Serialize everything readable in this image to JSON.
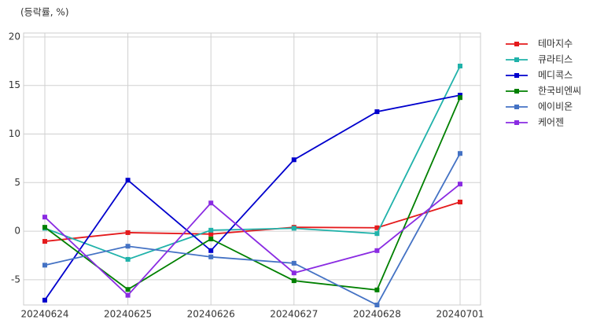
{
  "chart_data": {
    "type": "line",
    "ylabel": "(등락률, %)",
    "categories": [
      "20240624",
      "20240625",
      "20240626",
      "20240627",
      "20240628",
      "20240701"
    ],
    "series": [
      {
        "name": "테마지수",
        "color": "#e41a1c",
        "values": [
          -1.05,
          -0.15,
          -0.3,
          0.4,
          0.35,
          3.0
        ]
      },
      {
        "name": "큐라티스",
        "color": "#20b2aa",
        "values": [
          0.3,
          -2.9,
          0.1,
          0.3,
          -0.25,
          17.0
        ]
      },
      {
        "name": "메디콕스",
        "color": "#0000cd",
        "values": [
          -7.1,
          5.25,
          -2.0,
          7.35,
          12.3,
          14.0
        ]
      },
      {
        "name": "한국비엔씨",
        "color": "#008000",
        "values": [
          0.4,
          -6.0,
          -0.8,
          -5.1,
          -6.05,
          13.75
        ]
      },
      {
        "name": "에이비온",
        "color": "#4472c4",
        "values": [
          -3.5,
          -1.55,
          -2.65,
          -3.3,
          -7.6,
          8.0
        ]
      },
      {
        "name": "케어젠",
        "color": "#8a2be2",
        "values": [
          1.45,
          -6.6,
          2.9,
          -4.3,
          -2.0,
          4.85
        ]
      }
    ],
    "ylim": [
      -7.6,
      20.4
    ],
    "yticks": [
      -5,
      0,
      5,
      10,
      15,
      20
    ],
    "grid": true,
    "legend": "outside upper right"
  }
}
